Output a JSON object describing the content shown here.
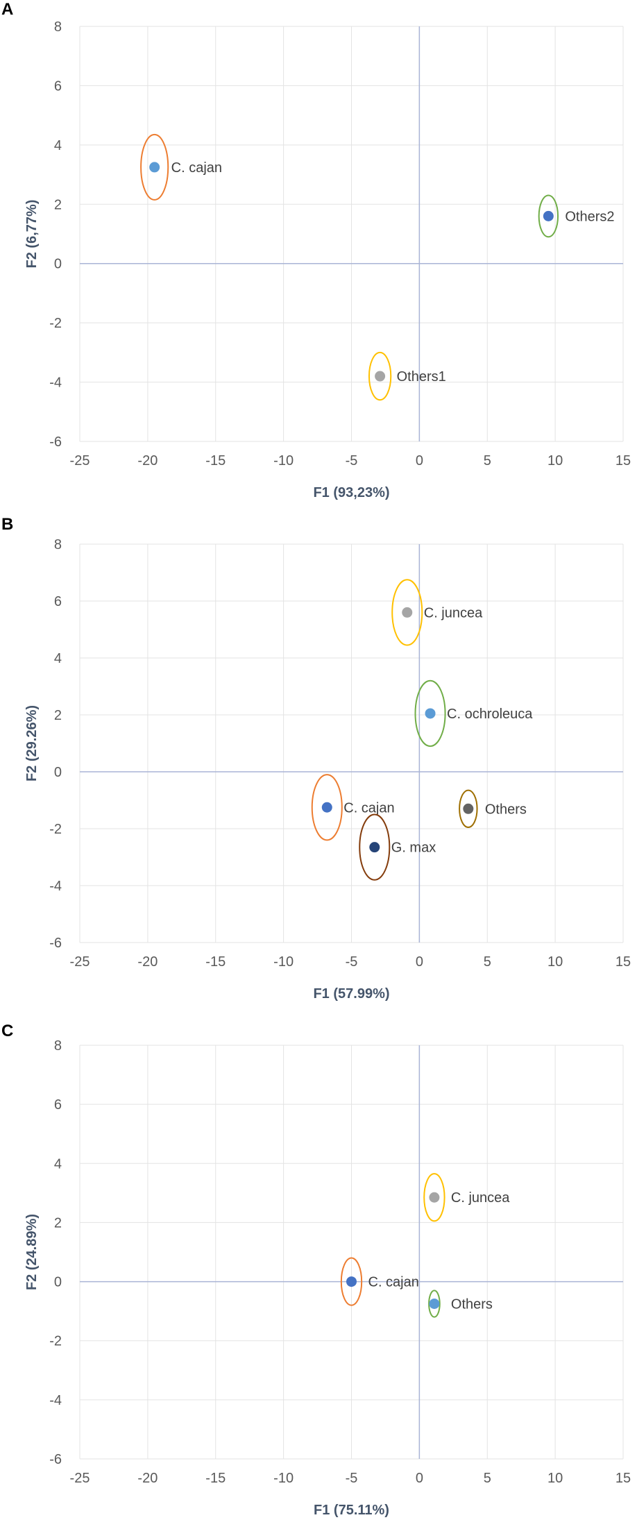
{
  "chart_data": [
    {
      "panel": "A",
      "type": "scatter",
      "xlabel": "F1 (93,23%)",
      "ylabel": "F2 (6,77%)",
      "xlim": [
        -25,
        15
      ],
      "ylim": [
        -6,
        8
      ],
      "xticks": [
        -25,
        -20,
        -15,
        -10,
        -5,
        0,
        5,
        10,
        15
      ],
      "yticks": [
        -6,
        -4,
        -2,
        0,
        2,
        4,
        6,
        8
      ],
      "grid": true,
      "points": [
        {
          "label": "C. cajan",
          "x": -19.5,
          "y": 3.25,
          "color": "#5b9bd5",
          "ring": "#ed7d31",
          "rx": 1.0,
          "ry": 1.1
        },
        {
          "label": "Others2",
          "x": 9.5,
          "y": 1.6,
          "color": "#4472c4",
          "ring": "#70ad47",
          "rx": 0.7,
          "ry": 0.7
        },
        {
          "label": "Others1",
          "x": -2.9,
          "y": -3.8,
          "color": "#a5a5a5",
          "ring": "#ffc000",
          "rx": 0.8,
          "ry": 0.8
        }
      ]
    },
    {
      "panel": "B",
      "type": "scatter",
      "xlabel": "F1 (57.99%)",
      "ylabel": "F2 (29.26%)",
      "xlim": [
        -25,
        15
      ],
      "ylim": [
        -6,
        8
      ],
      "xticks": [
        -25,
        -20,
        -15,
        -10,
        -5,
        0,
        5,
        10,
        15
      ],
      "yticks": [
        -6,
        -4,
        -2,
        0,
        2,
        4,
        6,
        8
      ],
      "grid": true,
      "points": [
        {
          "label": "C. juncea",
          "x": -0.9,
          "y": 5.6,
          "color": "#a5a5a5",
          "ring": "#ffc000",
          "rx": 1.1,
          "ry": 1.15
        },
        {
          "label": "C. ochroleuca",
          "x": 0.8,
          "y": 2.05,
          "color": "#5b9bd5",
          "ring": "#70ad47",
          "rx": 1.1,
          "ry": 1.15
        },
        {
          "label": "C. cajan",
          "x": -6.8,
          "y": -1.25,
          "color": "#4472c4",
          "ring": "#ed7d31",
          "rx": 1.1,
          "ry": 1.15
        },
        {
          "label": "Others",
          "x": 3.6,
          "y": -1.3,
          "color": "#636363",
          "ring": "#9e6e00",
          "rx": 0.65,
          "ry": 0.65
        },
        {
          "label": "G. max",
          "x": -3.3,
          "y": -2.65,
          "color": "#264478",
          "ring": "#843c0c",
          "rx": 1.1,
          "ry": 1.15
        }
      ]
    },
    {
      "panel": "C",
      "type": "scatter",
      "xlabel": "F1 (75.11%)",
      "ylabel": "F2 (24.89%)",
      "xlim": [
        -25,
        15
      ],
      "ylim": [
        -6,
        8
      ],
      "xticks": [
        -25,
        -20,
        -15,
        -10,
        -5,
        0,
        5,
        10,
        15
      ],
      "yticks": [
        -6,
        -4,
        -2,
        0,
        2,
        4,
        6,
        8
      ],
      "grid": true,
      "points": [
        {
          "label": "C. juncea",
          "x": 1.1,
          "y": 2.85,
          "color": "#a5a5a5",
          "ring": "#ffc000",
          "rx": 0.75,
          "ry": 0.8
        },
        {
          "label": "C. cajan",
          "x": -5.0,
          "y": 0.0,
          "color": "#4472c4",
          "ring": "#ed7d31",
          "rx": 0.75,
          "ry": 0.8
        },
        {
          "label": "Others",
          "x": 1.1,
          "y": -0.75,
          "color": "#5b9bd5",
          "ring": "#70ad47",
          "rx": 0.4,
          "ry": 0.45
        }
      ]
    }
  ]
}
